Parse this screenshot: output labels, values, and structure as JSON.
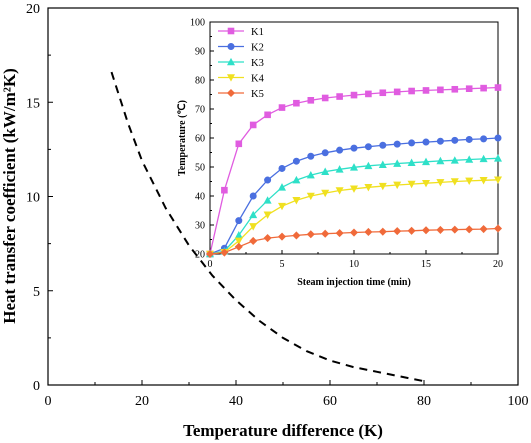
{
  "chart_data": [
    {
      "type": "line",
      "xlabel": "Temperature difference (K)",
      "ylabel": "Heat transfer coefficient (kW/m²K)",
      "xlim": [
        0,
        100
      ],
      "ylim": [
        0,
        20
      ],
      "xticks": [
        "0",
        "20",
        "40",
        "60",
        "80",
        "100"
      ],
      "yticks": [
        "0",
        "5",
        "10",
        "15",
        "20"
      ],
      "grid": false,
      "series": [
        {
          "style": "dashed",
          "color": "#000000",
          "x": [
            13.5,
            17,
            20,
            25,
            30,
            35,
            40,
            45,
            50,
            55,
            60,
            65,
            70,
            75,
            80
          ],
          "y": [
            16.6,
            13.9,
            11.9,
            9.4,
            7.4,
            5.8,
            4.5,
            3.4,
            2.5,
            1.8,
            1.3,
            0.95,
            0.7,
            0.45,
            0.2
          ]
        }
      ]
    },
    {
      "type": "line",
      "xlabel": "Steam injection time (min)",
      "ylabel": "Temperature (℃)",
      "xlim": [
        0,
        20
      ],
      "ylim": [
        20,
        100
      ],
      "xticks": [
        "0",
        "5",
        "10",
        "15",
        "20"
      ],
      "yticks": [
        "20",
        "30",
        "40",
        "50",
        "60",
        "70",
        "80",
        "90",
        "100"
      ],
      "legend": "top-left",
      "x": [
        0,
        1,
        2,
        3,
        4,
        5,
        6,
        7,
        8,
        9,
        10,
        11,
        12,
        13,
        14,
        15,
        16,
        17,
        18,
        19,
        20
      ],
      "series": [
        {
          "name": "K1",
          "color": "#e05ce0",
          "marker": "square",
          "values": [
            20,
            42,
            58,
            64.5,
            68,
            70.5,
            72,
            73,
            73.8,
            74.3,
            74.8,
            75.2,
            75.6,
            75.9,
            76.2,
            76.4,
            76.6,
            76.8,
            77,
            77.2,
            77.4
          ]
        },
        {
          "name": "K2",
          "color": "#4a6fe0",
          "marker": "circle",
          "values": [
            20,
            22,
            31.5,
            40,
            45.5,
            49.5,
            52,
            53.7,
            54.9,
            55.8,
            56.5,
            57,
            57.5,
            57.9,
            58.3,
            58.6,
            58.9,
            59.2,
            59.5,
            59.7,
            60
          ]
        },
        {
          "name": "K3",
          "color": "#2ee0c8",
          "marker": "triangle-up",
          "values": [
            20,
            21,
            26.5,
            33.5,
            38.5,
            43,
            45.5,
            47.2,
            48.4,
            49.2,
            49.9,
            50.4,
            50.8,
            51.2,
            51.5,
            51.8,
            52.1,
            52.3,
            52.6,
            52.8,
            53
          ]
        },
        {
          "name": "K4",
          "color": "#f0e020",
          "marker": "triangle-down",
          "values": [
            20,
            20.6,
            24.5,
            29.5,
            33.5,
            36.5,
            38.5,
            40,
            41,
            41.9,
            42.5,
            43,
            43.4,
            43.8,
            44.1,
            44.4,
            44.7,
            45,
            45.2,
            45.4,
            45.6
          ]
        },
        {
          "name": "K5",
          "color": "#f06a3a",
          "marker": "diamond",
          "values": [
            20,
            20.5,
            22.5,
            24.5,
            25.5,
            26,
            26.4,
            26.8,
            27,
            27.2,
            27.4,
            27.6,
            27.7,
            27.9,
            28,
            28.2,
            28.3,
            28.4,
            28.5,
            28.6,
            28.8
          ]
        }
      ]
    }
  ]
}
